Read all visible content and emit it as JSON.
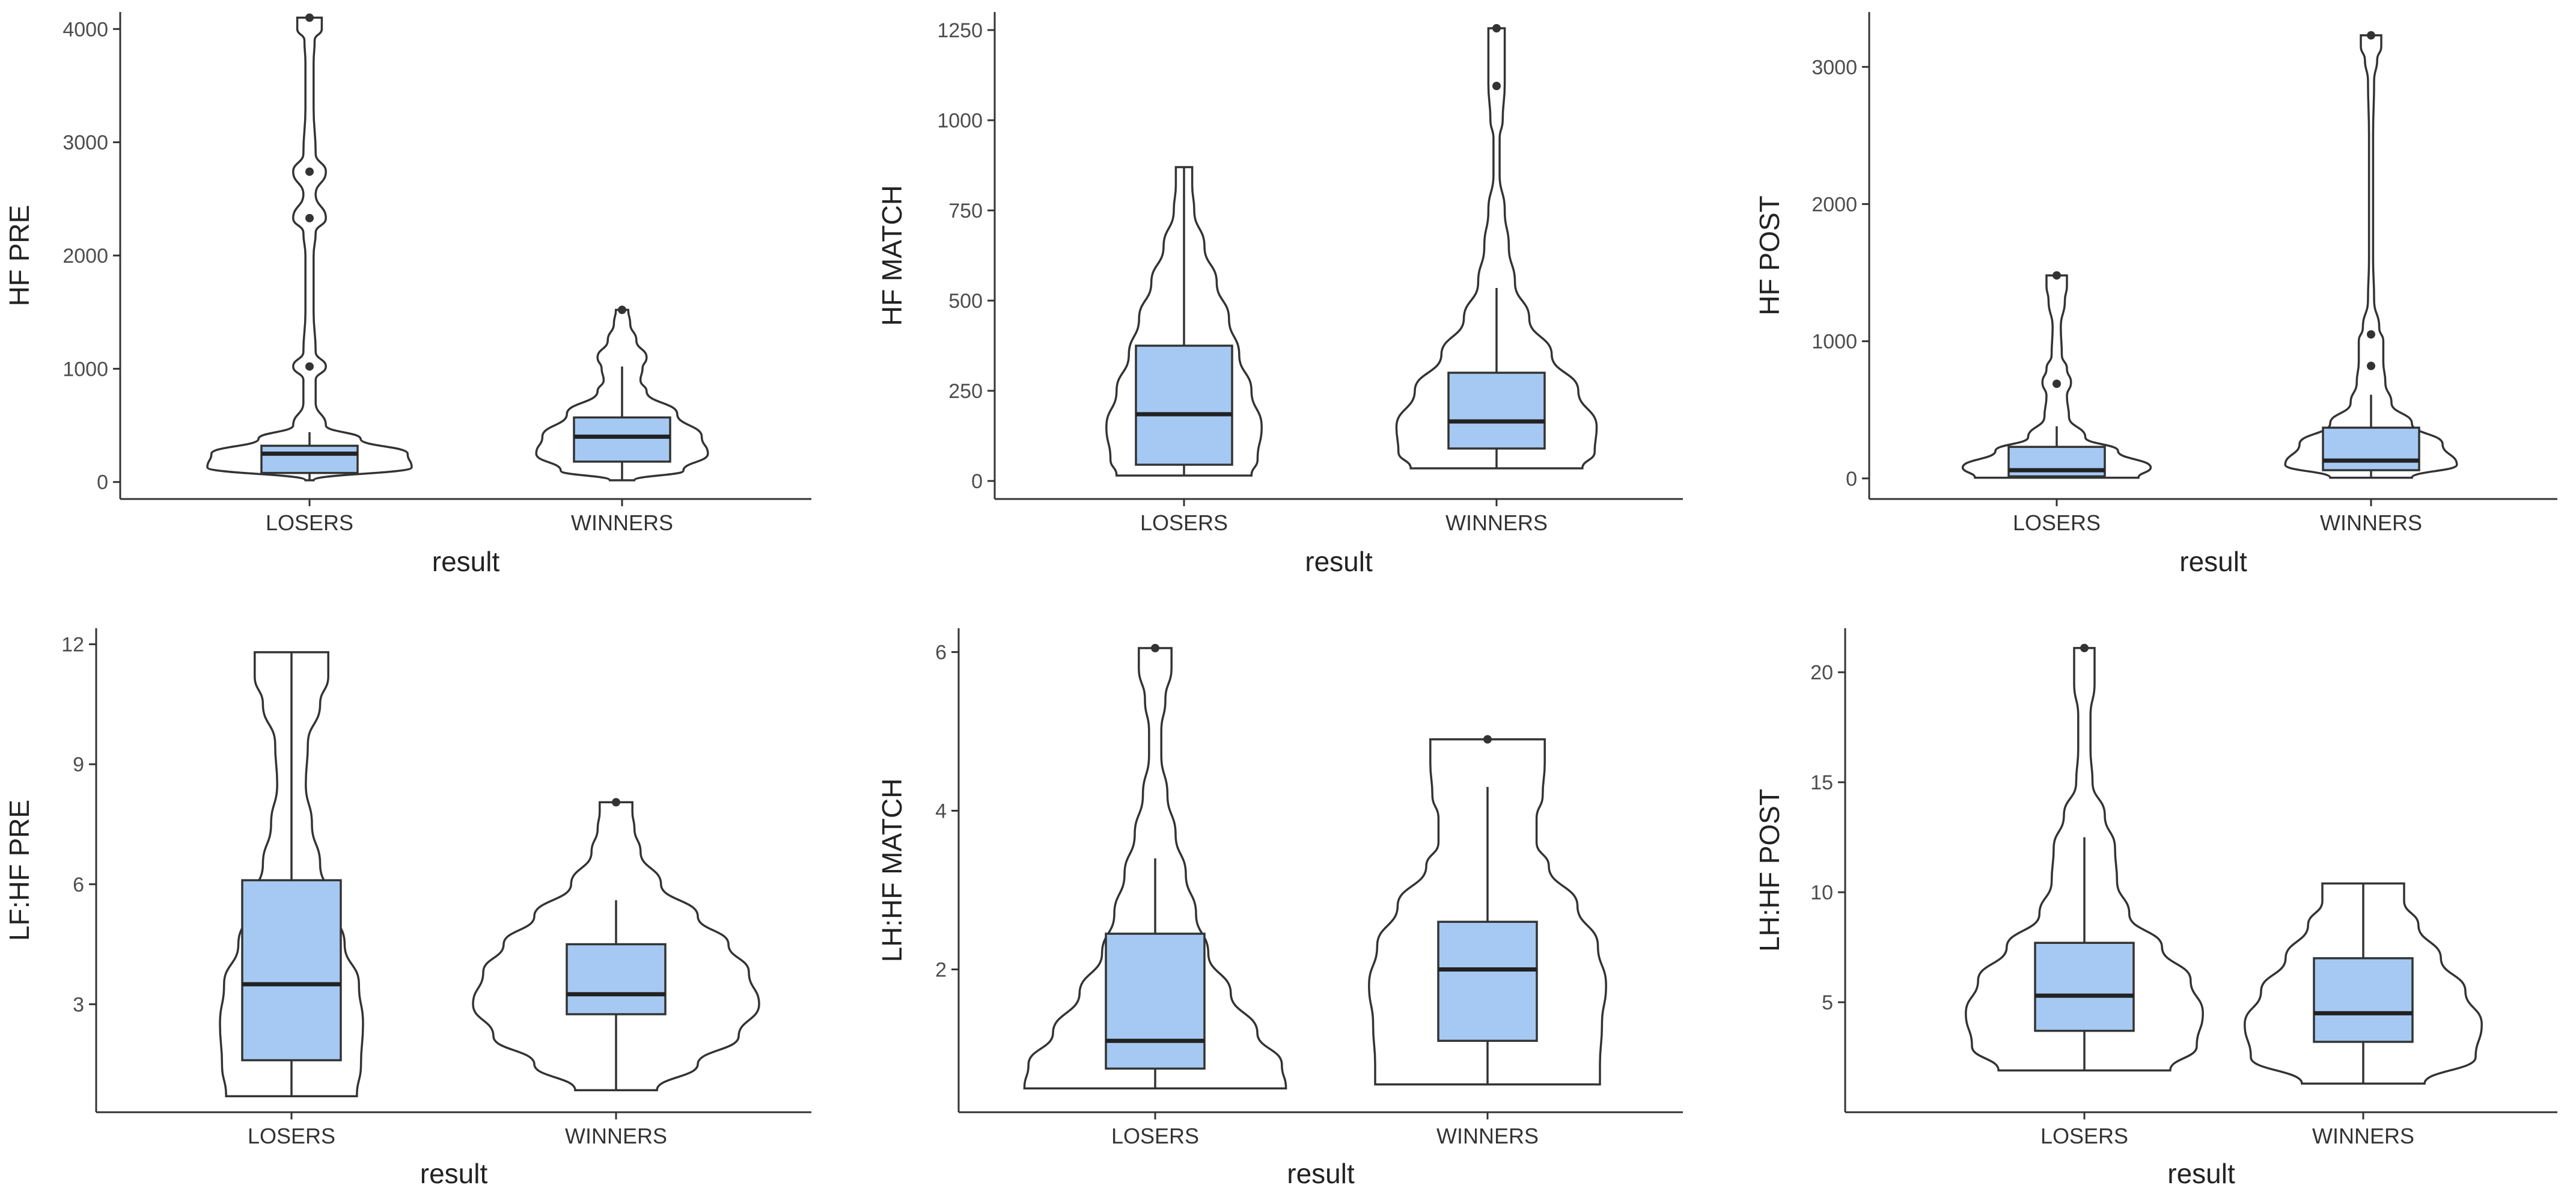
{
  "colors": {
    "box_fill": "#a5c9f2",
    "line": "#333333",
    "background": "#ffffff"
  },
  "chart_data": [
    {
      "type": "violin-box",
      "ylabel": "HF PRE",
      "xlabel": "result",
      "categories": [
        "LOSERS",
        "WINNERS"
      ],
      "ylim": [
        -150,
        4150
      ],
      "yticks": [
        0,
        1000,
        2000,
        3000,
        4000
      ],
      "tick_labels": [
        "0",
        "1000",
        "2000",
        "3000",
        "4000"
      ],
      "groups": [
        {
          "name": "LOSERS",
          "box": {
            "q1": 80,
            "median": 250,
            "q3": 320,
            "whisker_low": 15,
            "whisker_high": 440
          },
          "outliers": [
            1020,
            2330,
            2740,
            4100
          ],
          "violin_ys": [
            15,
            130,
            250,
            380,
            500,
            700,
            900,
            1020,
            1150,
            1500,
            2000,
            2200,
            2330,
            2540,
            2740,
            2900,
            3300,
            3700,
            3900,
            4000,
            4100
          ],
          "violin_ws": [
            0.02,
            0.5,
            0.48,
            0.25,
            0.08,
            0.03,
            0.03,
            0.08,
            0.03,
            0.02,
            0.02,
            0.03,
            0.08,
            0.03,
            0.08,
            0.03,
            0.02,
            0.02,
            0.025,
            0.06,
            0.06
          ]
        },
        {
          "name": "WINNERS",
          "box": {
            "q1": 180,
            "median": 400,
            "q3": 570,
            "whisker_low": 15,
            "whisker_high": 1020
          },
          "outliers": [
            1520
          ],
          "violin_ys": [
            15,
            100,
            250,
            400,
            600,
            800,
            900,
            1000,
            1100,
            1250,
            1400,
            1520
          ],
          "violin_ws": [
            0.06,
            0.3,
            0.42,
            0.39,
            0.27,
            0.12,
            0.09,
            0.1,
            0.12,
            0.07,
            0.04,
            0.03
          ]
        }
      ]
    },
    {
      "type": "violin-box",
      "ylabel": "HF MATCH",
      "xlabel": "result",
      "categories": [
        "LOSERS",
        "WINNERS"
      ],
      "ylim": [
        -50,
        1300
      ],
      "yticks": [
        0,
        250,
        500,
        750,
        1000,
        1250
      ],
      "tick_labels": [
        "0",
        "250",
        "500",
        "750",
        "1000",
        "1250"
      ],
      "groups": [
        {
          "name": "LOSERS",
          "box": {
            "q1": 45,
            "median": 185,
            "q3": 375,
            "whisker_low": 15,
            "whisker_high": 870
          },
          "outliers": [],
          "violin_ys": [
            15,
            60,
            150,
            250,
            350,
            450,
            550,
            650,
            750,
            820,
            870
          ],
          "violin_ws": [
            0.33,
            0.36,
            0.38,
            0.33,
            0.27,
            0.22,
            0.16,
            0.1,
            0.05,
            0.04,
            0.04
          ]
        },
        {
          "name": "WINNERS",
          "box": {
            "q1": 90,
            "median": 165,
            "q3": 300,
            "whisker_low": 35,
            "whisker_high": 535
          },
          "outliers": [
            1095,
            1255
          ],
          "violin_ys": [
            35,
            80,
            150,
            250,
            350,
            450,
            550,
            650,
            750,
            850,
            950,
            1000,
            1100,
            1180,
            1255
          ],
          "violin_ws": [
            0.42,
            0.48,
            0.49,
            0.4,
            0.27,
            0.16,
            0.09,
            0.06,
            0.04,
            0.015,
            0.015,
            0.03,
            0.04,
            0.04,
            0.04
          ]
        }
      ]
    },
    {
      "type": "violin-box",
      "ylabel": "HF POST",
      "xlabel": "result",
      "categories": [
        "LOSERS",
        "WINNERS"
      ],
      "ylim": [
        -150,
        3400
      ],
      "yticks": [
        0,
        1000,
        2000,
        3000
      ],
      "tick_labels": [
        "0",
        "1000",
        "2000",
        "3000"
      ],
      "groups": [
        {
          "name": "LOSERS",
          "box": {
            "q1": 15,
            "median": 60,
            "q3": 230,
            "whisker_low": 5,
            "whisker_high": 380
          },
          "outliers": [
            690,
            1480
          ],
          "violin_ys": [
            5,
            80,
            200,
            300,
            450,
            600,
            700,
            800,
            900,
            1100,
            1300,
            1400,
            1480
          ],
          "violin_ws": [
            0.4,
            0.46,
            0.3,
            0.14,
            0.06,
            0.05,
            0.07,
            0.05,
            0.025,
            0.02,
            0.04,
            0.05,
            0.05
          ]
        },
        {
          "name": "WINNERS",
          "box": {
            "q1": 60,
            "median": 130,
            "q3": 370,
            "whisker_low": 5,
            "whisker_high": 610
          },
          "outliers": [
            820,
            1050,
            3230
          ],
          "violin_ys": [
            5,
            100,
            250,
            400,
            550,
            700,
            850,
            1000,
            1100,
            1300,
            1600,
            2000,
            2500,
            2900,
            3050,
            3150,
            3230
          ],
          "violin_ws": [
            0.2,
            0.42,
            0.35,
            0.2,
            0.1,
            0.07,
            0.06,
            0.06,
            0.04,
            0.015,
            0.01,
            0.01,
            0.01,
            0.015,
            0.03,
            0.05,
            0.05
          ]
        }
      ]
    },
    {
      "type": "violin-box",
      "ylabel": "LF:HF PRE",
      "xlabel": "result",
      "categories": [
        "LOSERS",
        "WINNERS"
      ],
      "ylim": [
        0.3,
        12.4
      ],
      "yticks": [
        3,
        6,
        9,
        12
      ],
      "tick_labels": [
        "3",
        "6",
        "9",
        "12"
      ],
      "groups": [
        {
          "name": "LOSERS",
          "box": {
            "q1": 1.6,
            "median": 3.5,
            "q3": 6.1,
            "whisker_low": 0.7,
            "whisker_high": 11.8
          },
          "outliers": [],
          "violin_ys": [
            0.7,
            1.5,
            2.5,
            3.5,
            4.5,
            5.5,
            6.5,
            7.5,
            8.5,
            9.5,
            10.5,
            11.2,
            11.8
          ],
          "violin_ws": [
            0.32,
            0.34,
            0.35,
            0.33,
            0.26,
            0.2,
            0.14,
            0.1,
            0.07,
            0.08,
            0.14,
            0.18,
            0.18
          ]
        },
        {
          "name": "WINNERS",
          "box": {
            "q1": 2.75,
            "median": 3.25,
            "q3": 4.5,
            "whisker_low": 0.85,
            "whisker_high": 5.6
          },
          "outliers": [
            8.05
          ],
          "violin_ys": [
            0.85,
            1.5,
            2.2,
            3.0,
            3.8,
            4.5,
            5.2,
            6.0,
            6.8,
            7.4,
            7.8,
            8.05
          ],
          "violin_ws": [
            0.2,
            0.4,
            0.6,
            0.7,
            0.65,
            0.55,
            0.4,
            0.22,
            0.12,
            0.09,
            0.08,
            0.08
          ]
        }
      ]
    },
    {
      "type": "violin-box",
      "ylabel": "LH:HF MATCH",
      "xlabel": "result",
      "categories": [
        "LOSERS",
        "WINNERS"
      ],
      "ylim": [
        0.2,
        6.3
      ],
      "yticks": [
        2,
        4,
        6
      ],
      "tick_labels": [
        "2",
        "4",
        "6"
      ],
      "groups": [
        {
          "name": "LOSERS",
          "box": {
            "q1": 0.75,
            "median": 1.1,
            "q3": 2.45,
            "whisker_low": 0.5,
            "whisker_high": 3.4
          },
          "outliers": [
            6.05
          ],
          "violin_ys": [
            0.5,
            0.8,
            1.2,
            1.7,
            2.2,
            2.7,
            3.2,
            3.7,
            4.2,
            4.7,
            5.0,
            5.4,
            5.8,
            6.05
          ],
          "violin_ws": [
            0.64,
            0.62,
            0.5,
            0.37,
            0.26,
            0.2,
            0.15,
            0.1,
            0.06,
            0.03,
            0.03,
            0.05,
            0.08,
            0.08
          ]
        },
        {
          "name": "WINNERS",
          "box": {
            "q1": 1.1,
            "median": 2.0,
            "q3": 2.6,
            "whisker_low": 0.55,
            "whisker_high": 4.3
          },
          "outliers": [
            4.9
          ],
          "violin_ys": [
            0.55,
            0.8,
            1.3,
            1.8,
            2.3,
            2.8,
            3.3,
            3.6,
            3.9,
            4.2,
            4.6,
            4.9
          ],
          "violin_ws": [
            0.55,
            0.55,
            0.56,
            0.58,
            0.54,
            0.44,
            0.3,
            0.24,
            0.24,
            0.27,
            0.28,
            0.28
          ]
        }
      ]
    },
    {
      "type": "violin-box",
      "ylabel": "LH:HF POST",
      "xlabel": "result",
      "categories": [
        "LOSERS",
        "WINNERS"
      ],
      "ylim": [
        0,
        22
      ],
      "yticks": [
        5,
        10,
        15,
        20
      ],
      "tick_labels": [
        "5",
        "10",
        "15",
        "20"
      ],
      "groups": [
        {
          "name": "LOSERS",
          "box": {
            "q1": 3.7,
            "median": 5.3,
            "q3": 7.7,
            "whisker_low": 1.9,
            "whisker_high": 12.5
          },
          "outliers": [
            21.1
          ],
          "violin_ys": [
            1.9,
            3.0,
            4.5,
            6.0,
            7.5,
            9.0,
            10.5,
            12.0,
            13.5,
            15.0,
            16.5,
            18.0,
            19.5,
            21.1
          ],
          "violin_ws": [
            0.42,
            0.55,
            0.58,
            0.52,
            0.38,
            0.22,
            0.16,
            0.15,
            0.1,
            0.04,
            0.03,
            0.03,
            0.05,
            0.05
          ]
        },
        {
          "name": "WINNERS",
          "box": {
            "q1": 3.2,
            "median": 4.5,
            "q3": 7.0,
            "whisker_low": 1.3,
            "whisker_high": 10.4
          },
          "outliers": [],
          "violin_ys": [
            1.3,
            2.5,
            4.0,
            5.5,
            7.0,
            8.5,
            9.6,
            10.4
          ],
          "violin_ws": [
            0.3,
            0.55,
            0.58,
            0.5,
            0.38,
            0.27,
            0.2,
            0.2
          ]
        }
      ]
    }
  ]
}
